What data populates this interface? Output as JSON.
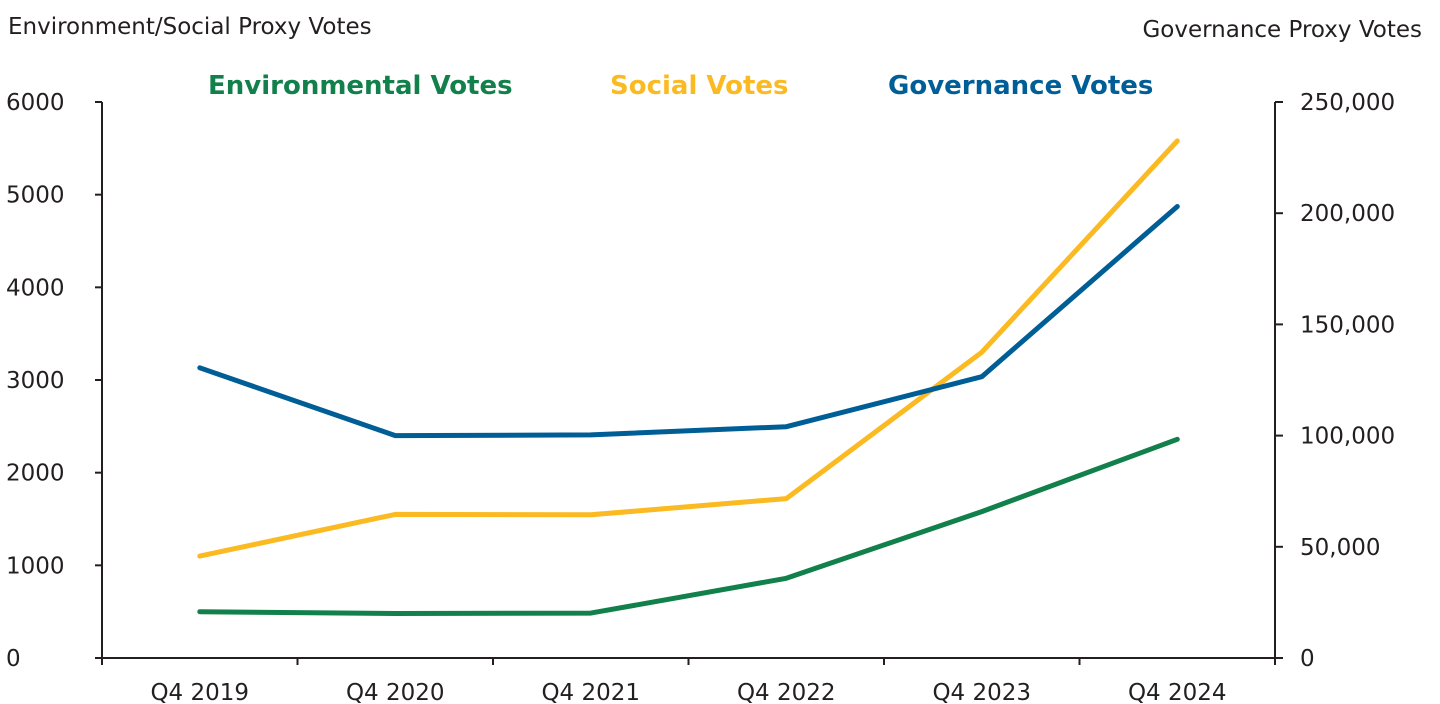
{
  "chart_data": {
    "type": "line",
    "title": "",
    "categories": [
      "Q4 2019",
      "Q4 2020",
      "Q4 2021",
      "Q4 2022",
      "Q4 2023",
      "Q4 2024"
    ],
    "y_left": {
      "label": "Environment/Social Proxy Votes",
      "range": [
        0,
        6000
      ],
      "ticks": [
        "0",
        "1000",
        "2000",
        "3000",
        "4000",
        "5000",
        "6000"
      ]
    },
    "y_right": {
      "label": "Governance Proxy Votes",
      "range": [
        0,
        250000
      ],
      "ticks": [
        "0",
        "50,000",
        "100,000",
        "150,000",
        "200,000",
        "250,000"
      ]
    },
    "series": [
      {
        "name": "Environmental Votes",
        "axis": "left",
        "color": "#12804a",
        "values": [
          500,
          480,
          485,
          860,
          1580,
          2360
        ]
      },
      {
        "name": "Social Votes",
        "axis": "left",
        "color": "#fbba22",
        "values": [
          1100,
          1550,
          1545,
          1720,
          3300,
          5580
        ]
      },
      {
        "name": "Governance Votes",
        "axis": "right",
        "color": "#005e96",
        "values": [
          130500,
          100000,
          100300,
          104000,
          126500,
          203000
        ]
      }
    ],
    "grid": false,
    "legend_position": "top"
  }
}
